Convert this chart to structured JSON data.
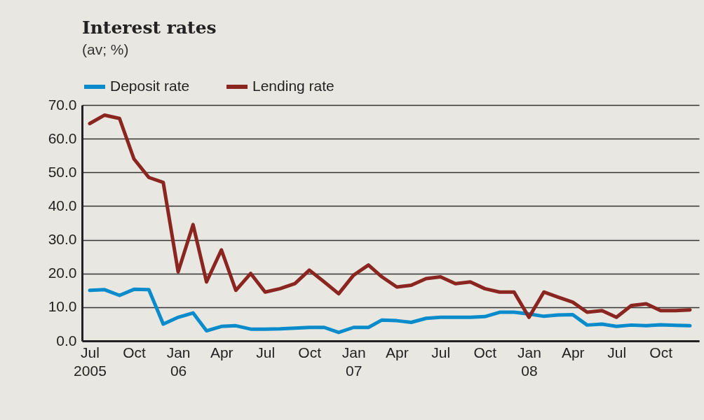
{
  "chart_data": {
    "type": "line",
    "title": "Interest rates",
    "subtitle": "(av; %)",
    "x": [
      "2005-07",
      "2005-08",
      "2005-09",
      "2005-10",
      "2005-11",
      "2005-12",
      "2006-01",
      "2006-02",
      "2006-03",
      "2006-04",
      "2006-05",
      "2006-06",
      "2006-07",
      "2006-08",
      "2006-09",
      "2006-10",
      "2006-11",
      "2006-12",
      "2007-01",
      "2007-02",
      "2007-03",
      "2007-04",
      "2007-05",
      "2007-06",
      "2007-07",
      "2007-08",
      "2007-09",
      "2007-10",
      "2007-11",
      "2007-12",
      "2008-01",
      "2008-02",
      "2008-03",
      "2008-04",
      "2008-05",
      "2008-06",
      "2008-07",
      "2008-08",
      "2008-09",
      "2008-10",
      "2008-11",
      "2008-12"
    ],
    "series": [
      {
        "name": "Deposit rate",
        "color": "#0a8ccc",
        "values": [
          15,
          15.2,
          13.5,
          15.3,
          15.2,
          5,
          7,
          8.3,
          3,
          4.3,
          4.5,
          3.5,
          3.5,
          3.6,
          3.8,
          4,
          4,
          2.5,
          4,
          4,
          6.2,
          6,
          5.5,
          6.7,
          7,
          7,
          7,
          7.2,
          8.5,
          8.5,
          8,
          7.3,
          7.7,
          7.8,
          4.7,
          5,
          4.3,
          4.7,
          4.5,
          4.8,
          4.6,
          4.5
        ]
      },
      {
        "name": "Lending rate",
        "color": "#8b2520",
        "values": [
          64.5,
          67,
          66,
          54,
          48.5,
          47,
          20.5,
          34.5,
          17.5,
          27,
          15,
          20,
          14.5,
          15.5,
          17,
          21,
          17.5,
          14,
          19.5,
          22.5,
          19,
          16,
          16.5,
          18.5,
          19,
          17,
          17.5,
          15.5,
          14.5,
          14.5,
          7,
          14.5,
          13,
          11.5,
          8.5,
          9,
          7,
          10.5,
          11,
          9,
          9,
          9.2
        ]
      }
    ],
    "xlim": [
      "2005-06-15",
      "2008-12-20"
    ],
    "xticks": [
      {
        "value": "2005-07",
        "label": "Jul\n2005"
      },
      {
        "value": "2005-10",
        "label": "Oct"
      },
      {
        "value": "2006-01",
        "label": "Jan\n06"
      },
      {
        "value": "2006-04",
        "label": "Apr"
      },
      {
        "value": "2006-07",
        "label": "Jul"
      },
      {
        "value": "2006-10",
        "label": "Oct"
      },
      {
        "value": "2007-01",
        "label": "Jan\n07"
      },
      {
        "value": "2007-04",
        "label": "Apr"
      },
      {
        "value": "2007-07",
        "label": "Jul"
      },
      {
        "value": "2007-10",
        "label": "Oct"
      },
      {
        "value": "2008-01",
        "label": "Jan\n08"
      },
      {
        "value": "2008-04",
        "label": "Apr"
      },
      {
        "value": "2008-07",
        "label": "Jul"
      },
      {
        "value": "2008-10",
        "label": "Oct"
      }
    ],
    "ylim": [
      0,
      70
    ],
    "yticks": [
      {
        "value": 0,
        "label": "0.0"
      },
      {
        "value": 10,
        "label": "10.0"
      },
      {
        "value": 20,
        "label": "20.0"
      },
      {
        "value": 30,
        "label": "30.0"
      },
      {
        "value": 40,
        "label": "40.0"
      },
      {
        "value": 50,
        "label": "50.0"
      },
      {
        "value": 60,
        "label": "60.0"
      },
      {
        "value": 70,
        "label": "70.0"
      }
    ],
    "grid": "y",
    "legend": "top left",
    "line_style": "solid",
    "marker": "none"
  }
}
